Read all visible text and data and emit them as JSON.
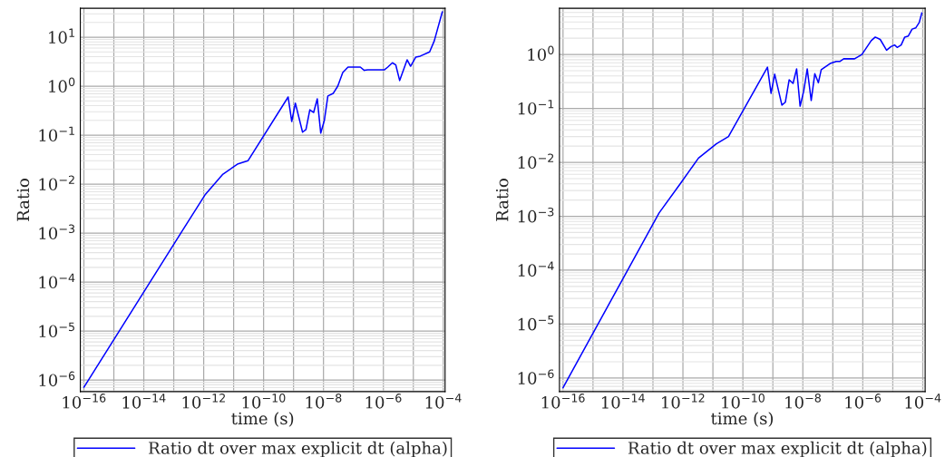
{
  "chart_data": [
    {
      "type": "line",
      "xlabel": "time (s)",
      "ylabel": "Ratio",
      "log": "xy",
      "grid": true,
      "legend": "bottom",
      "marker": "none",
      "line_style": "solid",
      "xlim": [
        7.6e-17,
        0.000115
      ],
      "ylim": [
        5.8e-07,
        39
      ],
      "xticks": [
        {
          "value": 1e-16,
          "label": "10$^{−16}$"
        },
        {
          "value": 1e-15,
          "label": null
        },
        {
          "value": 1e-14,
          "label": "10$^{−14}$"
        },
        {
          "value": 1e-13,
          "label": null
        },
        {
          "value": 1e-12,
          "label": "10$^{−12}$"
        },
        {
          "value": 1e-11,
          "label": null
        },
        {
          "value": 1e-10,
          "label": "10$^{−10}$"
        },
        {
          "value": 1e-09,
          "label": null
        },
        {
          "value": 1e-08,
          "label": "10$^{−8}$"
        },
        {
          "value": 1e-07,
          "label": null
        },
        {
          "value": 1e-06,
          "label": "10$^{−6}$"
        },
        {
          "value": 1e-05,
          "label": null
        },
        {
          "value": 0.0001,
          "label": "10$^{−4}$"
        }
      ],
      "yticks": [
        {
          "value": 1e-06,
          "label": "10$^{−6}$"
        },
        {
          "value": 1e-05,
          "label": "10$^{−5}$"
        },
        {
          "value": 0.0001,
          "label": "10$^{−4}$"
        },
        {
          "value": 0.001,
          "label": "10$^{−3}$"
        },
        {
          "value": 0.01,
          "label": "10$^{−2}$"
        },
        {
          "value": 0.1,
          "label": "10$^{−1}$"
        },
        {
          "value": 1,
          "label": "10$^{0}$"
        },
        {
          "value": 10,
          "label": "10$^{1}$"
        }
      ],
      "series": [
        {
          "name": "Ratio dt over max explicit dt (alpha)",
          "color": "#0000ff",
          "x": [
            1e-16,
            1.9e-13,
            1.1e-12,
            4.4e-12,
            1.4e-11,
            3e-11,
            6.6e-10,
            8.7e-10,
            1.15e-09,
            2e-09,
            2.6e-09,
            3.5e-09,
            4.7e-09,
            6.2e-09,
            8.1e-09,
            1.07e-08,
            1.4e-08,
            2.1e-08,
            3e-08,
            4.4e-08,
            6.6e-08,
            1.7e-07,
            2.3e-07,
            3e-07,
            1.07e-06,
            1.4e-06,
            2e-06,
            2.6e-06,
            3.5e-06,
            6.2e-06,
            8.1e-06,
            1.2e-05,
            1.7e-05,
            3.5e-05,
            5e-05,
            9.3e-05
          ],
          "values": [
            7.1e-07,
            0.0011,
            0.006,
            0.016,
            0.026,
            0.03,
            0.6,
            0.19,
            0.45,
            0.115,
            0.13,
            0.33,
            0.29,
            0.55,
            0.11,
            0.2,
            0.63,
            0.71,
            1.0,
            1.9,
            2.45,
            2.45,
            2.1,
            2.15,
            2.15,
            2.45,
            3.0,
            2.7,
            1.3,
            3.45,
            2.55,
            3.9,
            4.1,
            5.0,
            8.4,
            33
          ]
        }
      ]
    },
    {
      "type": "line",
      "xlabel": "time (s)",
      "ylabel": "Ratio",
      "log": "xy",
      "grid": true,
      "legend": "bottom",
      "marker": "none",
      "line_style": "solid",
      "xlim": [
        7.6e-17,
        0.00012
      ],
      "ylim": [
        5.6e-07,
        7.2
      ],
      "xticks": [
        {
          "value": 1e-16,
          "label": "10$^{−16}$"
        },
        {
          "value": 1e-15,
          "label": null
        },
        {
          "value": 1e-14,
          "label": "10$^{−14}$"
        },
        {
          "value": 1e-13,
          "label": null
        },
        {
          "value": 1e-12,
          "label": "10$^{−12}$"
        },
        {
          "value": 1e-11,
          "label": null
        },
        {
          "value": 1e-10,
          "label": "10$^{−10}$"
        },
        {
          "value": 1e-09,
          "label": null
        },
        {
          "value": 1e-08,
          "label": "10$^{−8}$"
        },
        {
          "value": 1e-07,
          "label": null
        },
        {
          "value": 1e-06,
          "label": "10$^{−6}$"
        },
        {
          "value": 1e-05,
          "label": null
        },
        {
          "value": 0.0001,
          "label": "10$^{−4}$"
        }
      ],
      "yticks": [
        {
          "value": 1e-06,
          "label": "10$^{−6}$"
        },
        {
          "value": 1e-05,
          "label": "10$^{−5}$"
        },
        {
          "value": 0.0001,
          "label": "10$^{−4}$"
        },
        {
          "value": 0.001,
          "label": "10$^{−3}$"
        },
        {
          "value": 0.01,
          "label": "10$^{−2}$"
        },
        {
          "value": 0.1,
          "label": "10$^{−1}$"
        },
        {
          "value": 1,
          "label": "10$^{0}$"
        }
      ],
      "series": [
        {
          "name": "Ratio dt over max explicit dt (alpha)",
          "color": "#0000ff",
          "x": [
            1e-16,
            1.6e-13,
            8.1e-13,
            3.3e-12,
            1.3e-11,
            3.3e-11,
            6.6e-10,
            8.7e-10,
            1.15e-09,
            2e-09,
            2.6e-09,
            3.5e-09,
            4.7e-09,
            6.2e-09,
            8.1e-09,
            1.07e-08,
            1.4e-08,
            1.9e-08,
            2.5e-08,
            3.3e-08,
            4.1e-08,
            8.1e-08,
            1.3e-07,
            1.7e-07,
            2.3e-07,
            5.3e-07,
            9.3e-07,
            1.9e-06,
            2.6e-06,
            3.8e-06,
            6.2e-06,
            8.7e-06,
            1.15e-05,
            1.4e-05,
            1.9e-05,
            2.5e-05,
            3.3e-05,
            4.4e-05,
            5.8e-05,
            7.6e-05,
            9.3e-05
          ],
          "values": [
            6.6e-07,
            0.00115,
            0.004,
            0.012,
            0.022,
            0.03,
            0.58,
            0.19,
            0.43,
            0.115,
            0.13,
            0.34,
            0.29,
            0.54,
            0.11,
            0.21,
            0.54,
            0.14,
            0.44,
            0.3,
            0.52,
            0.68,
            0.74,
            0.74,
            0.83,
            0.83,
            1.0,
            1.8,
            2.1,
            1.9,
            1.2,
            1.4,
            1.5,
            1.35,
            1.5,
            2.1,
            2.2,
            2.95,
            3.1,
            3.9,
            5.9
          ]
        }
      ]
    }
  ]
}
